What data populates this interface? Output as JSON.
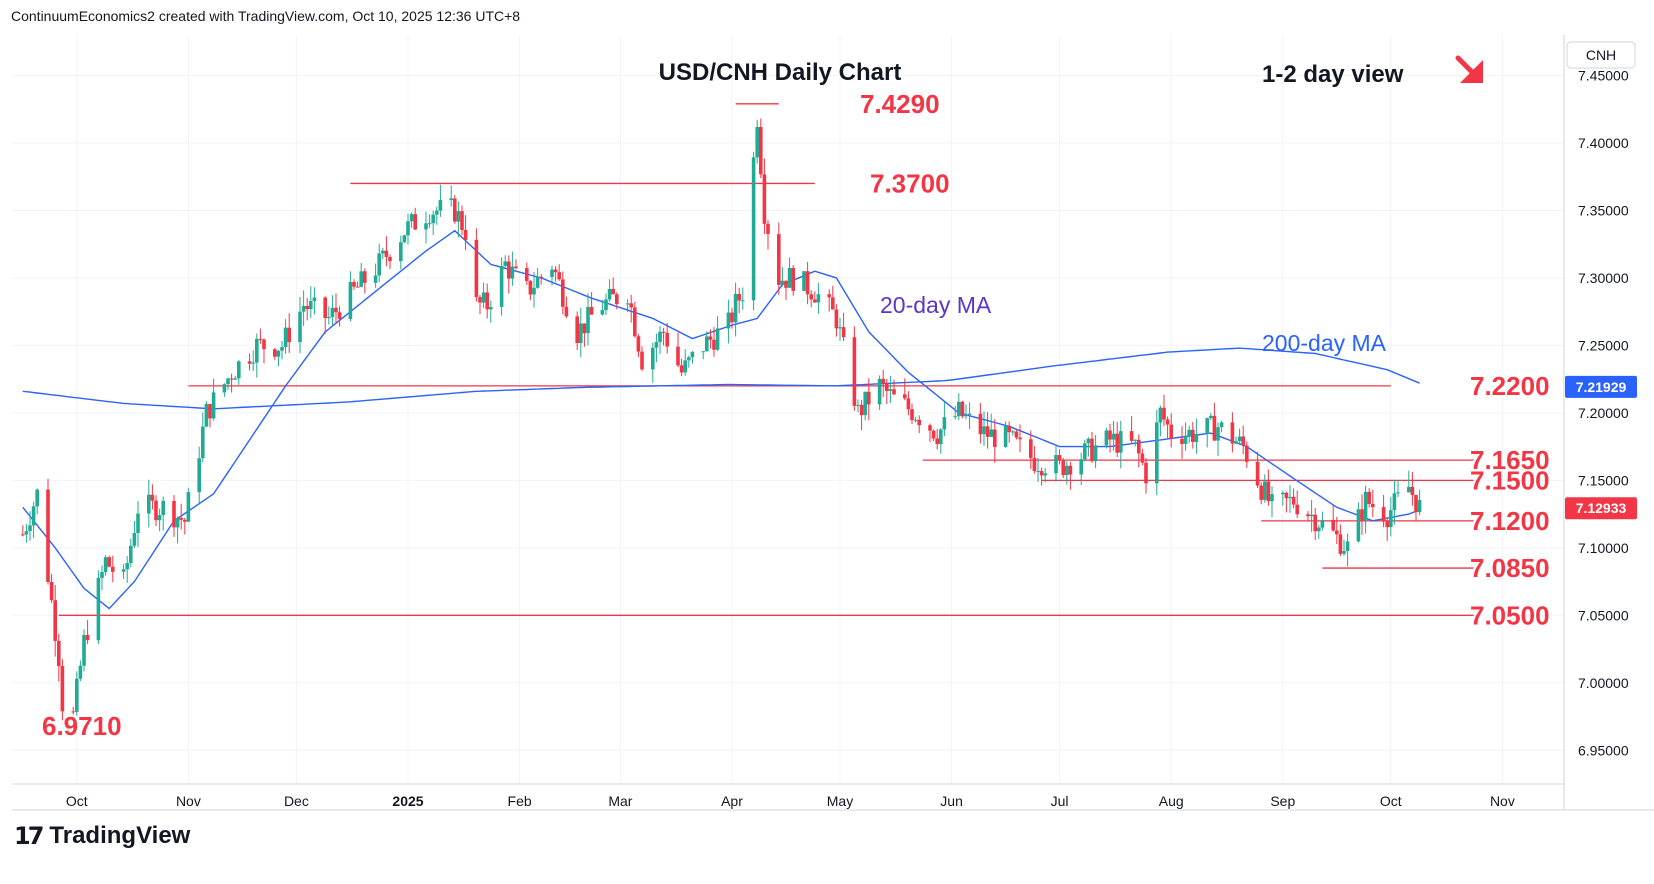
{
  "header": {
    "attribution": "ContinuumEconomics2 created with TradingView.com, Oct 10, 2025 12:36 UTC+8"
  },
  "logo": {
    "mark": "17",
    "text": "TradingView"
  },
  "colors": {
    "up": "#22ab94",
    "down": "#f23645",
    "ma": "#2962ff",
    "level": "#f23645",
    "grid": "#f0f3fa",
    "text": "#131722",
    "ma_label": "#5a36c9",
    "ma200_label": "#2962ff"
  },
  "chart_data": {
    "type": "candlestick",
    "title": "USD/CNH Daily Chart",
    "subtitle": "1-2 day view",
    "direction_icon": "arrow-down-right-icon",
    "symbol": "CNH",
    "y_ticks": [
      "7.45000",
      "7.40000",
      "7.35000",
      "7.30000",
      "7.25000",
      "7.20000",
      "7.15000",
      "7.10000",
      "7.05000",
      "7.00000",
      "6.95000"
    ],
    "ylim": [
      6.925,
      7.48
    ],
    "x_ticks": [
      "Oct",
      "Nov",
      "Dec",
      "2025",
      "Feb",
      "Mar",
      "Apr",
      "May",
      "Jun",
      "Jul",
      "Aug",
      "Sep",
      "Oct",
      "Nov"
    ],
    "current_price": {
      "value": 7.12933,
      "label": "7.12933"
    },
    "ma200_price": {
      "value": 7.21929,
      "label": "7.21929"
    },
    "levels": [
      {
        "label": "7.4290",
        "value": 7.429,
        "from": "2025-04-02",
        "to": "2025-04-14"
      },
      {
        "label": "7.3700",
        "value": 7.37,
        "from": "2024-12-16",
        "to": "2025-04-24"
      },
      {
        "label": "7.2200",
        "value": 7.22,
        "from": "2024-11-01",
        "to": "2025-10-01"
      },
      {
        "label": "7.1650",
        "value": 7.165,
        "from": "2025-05-24",
        "to": "2025-10-24"
      },
      {
        "label": "7.1500",
        "value": 7.15,
        "from": "2025-06-26",
        "to": "2025-10-24"
      },
      {
        "label": "7.1200",
        "value": 7.12,
        "from": "2025-08-26",
        "to": "2025-10-24"
      },
      {
        "label": "7.0850",
        "value": 7.085,
        "from": "2025-09-12",
        "to": "2025-10-24"
      },
      {
        "label": "7.0500",
        "value": 7.05,
        "from": "2024-09-26",
        "to": "2025-10-24"
      }
    ],
    "low_label": {
      "label": "6.9710",
      "value": 6.971
    },
    "ma_labels": [
      {
        "label": "20-day MA"
      },
      {
        "label": "200-day MA"
      }
    ],
    "ohlc_anchors": [
      [
        "2024-09-16",
        7.11
      ],
      [
        "2024-09-20",
        7.14
      ],
      [
        "2024-09-26",
        7.02
      ],
      [
        "2024-09-27",
        6.985
      ],
      [
        "2024-09-30",
        6.975
      ],
      [
        "2024-10-03",
        7.03
      ],
      [
        "2024-10-09",
        7.09
      ],
      [
        "2024-10-14",
        7.075
      ],
      [
        "2024-10-18",
        7.13
      ],
      [
        "2024-10-25",
        7.13
      ],
      [
        "2024-10-31",
        7.12
      ],
      [
        "2024-11-06",
        7.2
      ],
      [
        "2024-11-13",
        7.23
      ],
      [
        "2024-11-20",
        7.25
      ],
      [
        "2024-11-27",
        7.25
      ],
      [
        "2024-12-03",
        7.28
      ],
      [
        "2024-12-10",
        7.27
      ],
      [
        "2024-12-17",
        7.29
      ],
      [
        "2024-12-24",
        7.31
      ],
      [
        "2024-12-31",
        7.335
      ],
      [
        "2025-01-07",
        7.35
      ],
      [
        "2025-01-14",
        7.35
      ],
      [
        "2025-01-17",
        7.335
      ],
      [
        "2025-01-20",
        7.28
      ],
      [
        "2025-01-23",
        7.28
      ],
      [
        "2025-01-28",
        7.31
      ],
      [
        "2025-02-03",
        7.29
      ],
      [
        "2025-02-10",
        7.31
      ],
      [
        "2025-02-17",
        7.26
      ],
      [
        "2025-02-24",
        7.28
      ],
      [
        "2025-03-03",
        7.29
      ],
      [
        "2025-03-07",
        7.24
      ],
      [
        "2025-03-13",
        7.26
      ],
      [
        "2025-03-18",
        7.23
      ],
      [
        "2025-03-24",
        7.25
      ],
      [
        "2025-03-31",
        7.265
      ],
      [
        "2025-04-02",
        7.28
      ],
      [
        "2025-04-04",
        7.29
      ],
      [
        "2025-04-08",
        7.42
      ],
      [
        "2025-04-10",
        7.35
      ],
      [
        "2025-04-14",
        7.3
      ],
      [
        "2025-04-18",
        7.3
      ],
      [
        "2025-04-24",
        7.29
      ],
      [
        "2025-04-30",
        7.27
      ],
      [
        "2025-05-06",
        7.2
      ],
      [
        "2025-05-12",
        7.22
      ],
      [
        "2025-05-16",
        7.21
      ],
      [
        "2025-05-22",
        7.2
      ],
      [
        "2025-05-28",
        7.185
      ],
      [
        "2025-06-03",
        7.2
      ],
      [
        "2025-06-10",
        7.185
      ],
      [
        "2025-06-17",
        7.18
      ],
      [
        "2025-06-24",
        7.165
      ],
      [
        "2025-07-01",
        7.16
      ],
      [
        "2025-07-08",
        7.17
      ],
      [
        "2025-07-15",
        7.18
      ],
      [
        "2025-07-22",
        7.175
      ],
      [
        "2025-07-25",
        7.155
      ],
      [
        "2025-07-29",
        7.2
      ],
      [
        "2025-08-01",
        7.185
      ],
      [
        "2025-08-08",
        7.185
      ],
      [
        "2025-08-14",
        7.19
      ],
      [
        "2025-08-21",
        7.175
      ],
      [
        "2025-08-26",
        7.145
      ],
      [
        "2025-08-29",
        7.13
      ],
      [
        "2025-09-04",
        7.135
      ],
      [
        "2025-09-11",
        7.12
      ],
      [
        "2025-09-17",
        7.105
      ],
      [
        "2025-09-19",
        7.1
      ],
      [
        "2025-09-24",
        7.135
      ],
      [
        "2025-09-30",
        7.125
      ],
      [
        "2025-10-06",
        7.145
      ],
      [
        "2025-10-09",
        7.13
      ]
    ],
    "ma20_anchors": [
      [
        "2024-09-16",
        7.13
      ],
      [
        "2024-09-25",
        7.1
      ],
      [
        "2024-10-03",
        7.07
      ],
      [
        "2024-10-10",
        7.055
      ],
      [
        "2024-10-17",
        7.075
      ],
      [
        "2024-10-28",
        7.12
      ],
      [
        "2024-11-08",
        7.14
      ],
      [
        "2024-11-18",
        7.18
      ],
      [
        "2024-11-28",
        7.22
      ],
      [
        "2024-12-09",
        7.26
      ],
      [
        "2024-12-23",
        7.29
      ],
      [
        "2025-01-06",
        7.32
      ],
      [
        "2025-01-14",
        7.335
      ],
      [
        "2025-01-24",
        7.31
      ],
      [
        "2025-02-07",
        7.3
      ],
      [
        "2025-02-21",
        7.285
      ],
      [
        "2025-03-10",
        7.27
      ],
      [
        "2025-03-21",
        7.255
      ],
      [
        "2025-04-01",
        7.265
      ],
      [
        "2025-04-08",
        7.27
      ],
      [
        "2025-04-15",
        7.295
      ],
      [
        "2025-04-24",
        7.305
      ],
      [
        "2025-04-30",
        7.3
      ],
      [
        "2025-05-09",
        7.26
      ],
      [
        "2025-05-20",
        7.23
      ],
      [
        "2025-06-03",
        7.2
      ],
      [
        "2025-06-17",
        7.19
      ],
      [
        "2025-07-01",
        7.175
      ],
      [
        "2025-07-15",
        7.175
      ],
      [
        "2025-07-29",
        7.18
      ],
      [
        "2025-08-12",
        7.185
      ],
      [
        "2025-08-22",
        7.175
      ],
      [
        "2025-09-02",
        7.155
      ],
      [
        "2025-09-16",
        7.13
      ],
      [
        "2025-09-26",
        7.12
      ],
      [
        "2025-10-06",
        7.125
      ],
      [
        "2025-10-09",
        7.128
      ]
    ],
    "ma200_anchors": [
      [
        "2024-09-16",
        7.216
      ],
      [
        "2024-10-14",
        7.207
      ],
      [
        "2024-11-08",
        7.203
      ],
      [
        "2024-12-15",
        7.208
      ],
      [
        "2025-01-20",
        7.216
      ],
      [
        "2025-02-20",
        7.219
      ],
      [
        "2025-03-31",
        7.221
      ],
      [
        "2025-04-30",
        7.22
      ],
      [
        "2025-05-31",
        7.224
      ],
      [
        "2025-06-30",
        7.235
      ],
      [
        "2025-07-31",
        7.245
      ],
      [
        "2025-08-20",
        7.248
      ],
      [
        "2025-09-10",
        7.244
      ],
      [
        "2025-09-30",
        7.232
      ],
      [
        "2025-10-09",
        7.222
      ]
    ],
    "grid": true
  }
}
